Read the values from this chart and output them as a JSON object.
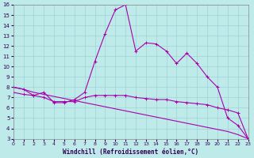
{
  "xlabel": "Windchill (Refroidissement éolien,°C)",
  "bg_color": "#beeaea",
  "grid_color": "#9dd4d4",
  "line_color": "#aa00aa",
  "x_hours": [
    0,
    1,
    2,
    3,
    4,
    5,
    6,
    7,
    8,
    9,
    10,
    11,
    12,
    13,
    14,
    15,
    16,
    17,
    18,
    19,
    20,
    21,
    22,
    23
  ],
  "windchill_main": [
    8.0,
    7.8,
    7.2,
    7.5,
    6.5,
    6.5,
    6.8,
    7.5,
    10.5,
    13.2,
    15.5,
    16.0,
    11.5,
    12.3,
    12.2,
    11.5,
    10.3,
    11.3,
    10.3,
    9.0,
    8.0,
    5.0,
    4.3,
    3.0
  ],
  "windchill_flat": [
    7.5,
    7.3,
    7.2,
    7.0,
    6.6,
    6.6,
    6.6,
    7.0,
    7.2,
    7.2,
    7.2,
    7.2,
    7.0,
    6.9,
    6.8,
    6.8,
    6.6,
    6.5,
    6.4,
    6.3,
    6.0,
    5.8,
    5.5,
    3.0
  ],
  "windchill_straight": [
    8.0,
    7.8,
    7.5,
    7.3,
    7.1,
    6.9,
    6.7,
    6.5,
    6.3,
    6.1,
    5.9,
    5.7,
    5.5,
    5.3,
    5.1,
    4.9,
    4.7,
    4.5,
    4.3,
    4.1,
    3.9,
    3.7,
    3.4,
    3.0
  ],
  "ylim_min": 3,
  "ylim_max": 16,
  "xlim_min": 0,
  "xlim_max": 23,
  "yticks": [
    3,
    4,
    5,
    6,
    7,
    8,
    9,
    10,
    11,
    12,
    13,
    14,
    15,
    16
  ],
  "xticks": [
    0,
    1,
    2,
    3,
    4,
    5,
    6,
    7,
    8,
    9,
    10,
    11,
    12,
    13,
    14,
    15,
    16,
    17,
    18,
    19,
    20,
    21,
    22,
    23
  ]
}
